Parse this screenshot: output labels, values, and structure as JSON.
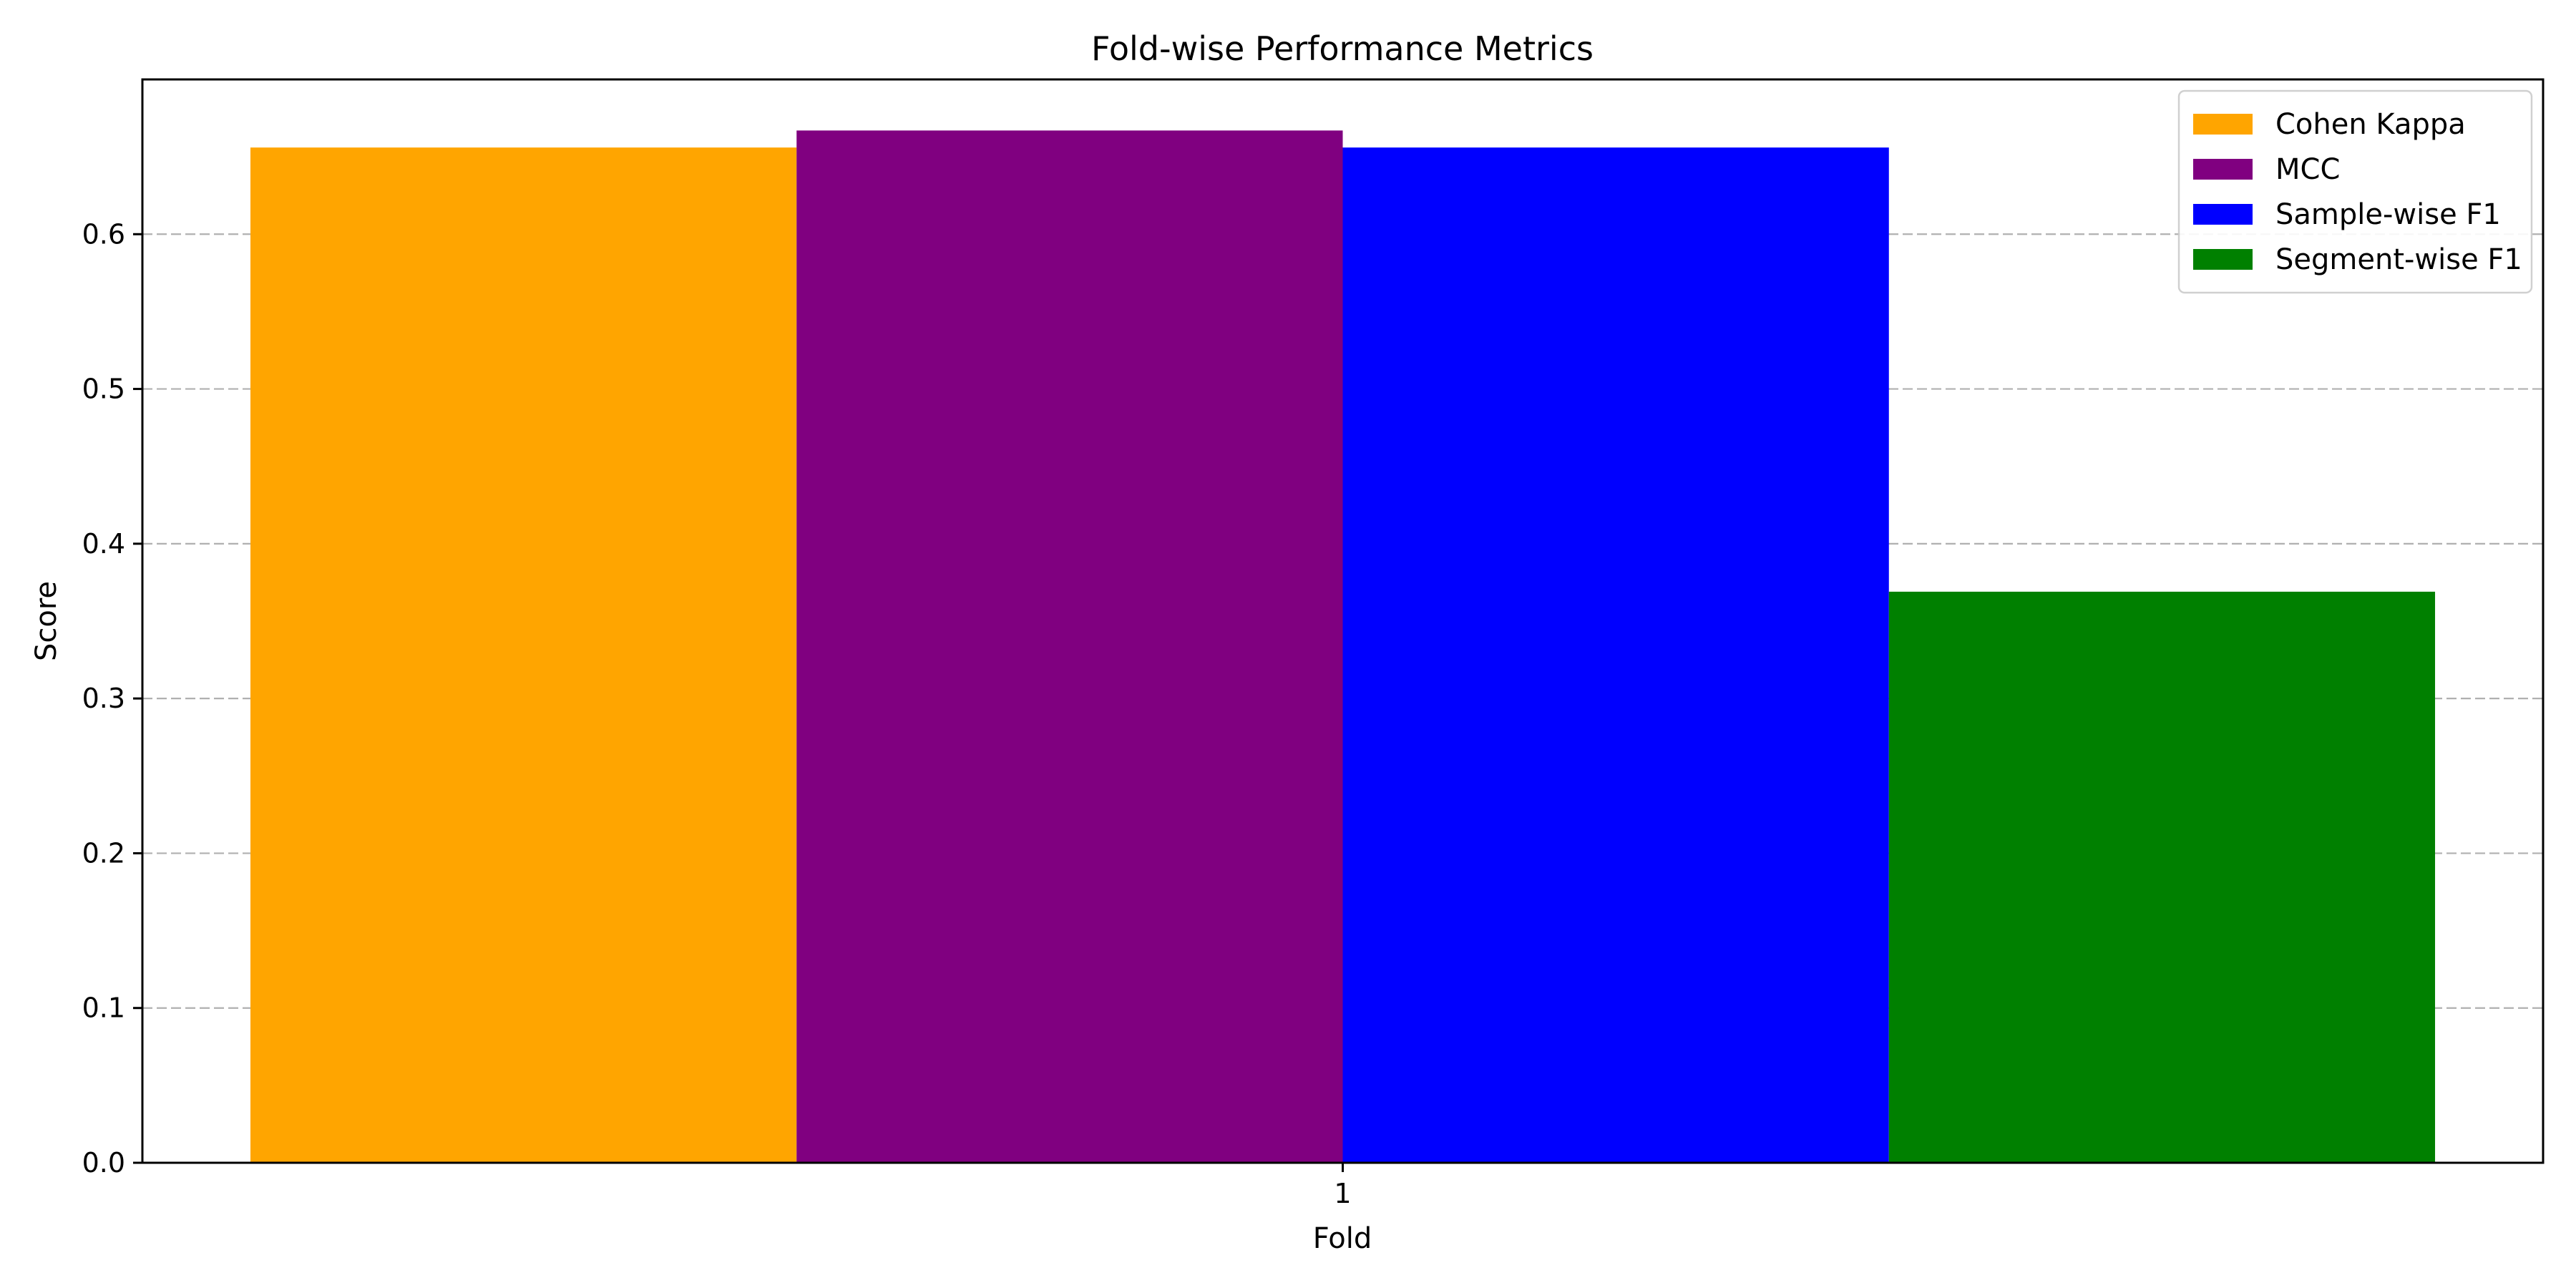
{
  "chart_data": {
    "type": "bar",
    "title": "Fold-wise Performance Metrics",
    "xlabel": "Fold",
    "ylabel": "Score",
    "categories": [
      "1"
    ],
    "ylim": [
      0,
      0.7
    ],
    "yticks": [
      "0.0",
      "0.1",
      "0.2",
      "0.3",
      "0.4",
      "0.5",
      "0.6"
    ],
    "grid": "y-dashed",
    "legend_position": "top-right",
    "series": [
      {
        "name": "Cohen Kappa",
        "color": "#FFA500",
        "values": [
          0.656
        ]
      },
      {
        "name": "MCC",
        "color": "#800080",
        "values": [
          0.667
        ]
      },
      {
        "name": "Sample-wise F1",
        "color": "#0000FF",
        "values": [
          0.656
        ]
      },
      {
        "name": "Segment-wise F1",
        "color": "#008000",
        "values": [
          0.369
        ]
      }
    ]
  }
}
